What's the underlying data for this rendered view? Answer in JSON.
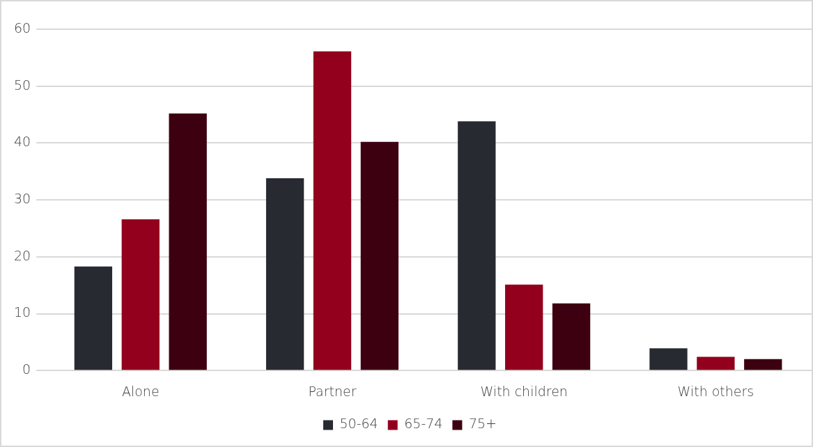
{
  "chart_data": {
    "type": "bar",
    "categories": [
      "Alone",
      "Partner",
      "With children",
      "With others"
    ],
    "series": [
      {
        "name": "50-64",
        "color": "#272a31",
        "values": [
          18.3,
          33.8,
          43.8,
          3.9
        ]
      },
      {
        "name": "65-74",
        "color": "#93001e",
        "values": [
          26.6,
          56.1,
          15.1,
          2.4
        ]
      },
      {
        "name": "75+",
        "color": "#3d0010",
        "values": [
          45.2,
          40.2,
          11.8,
          2.0
        ]
      }
    ],
    "ylim": [
      0,
      60
    ],
    "yticks": [
      0,
      10,
      20,
      30,
      40,
      50,
      60
    ],
    "grid": "y",
    "legend": "bottom"
  }
}
